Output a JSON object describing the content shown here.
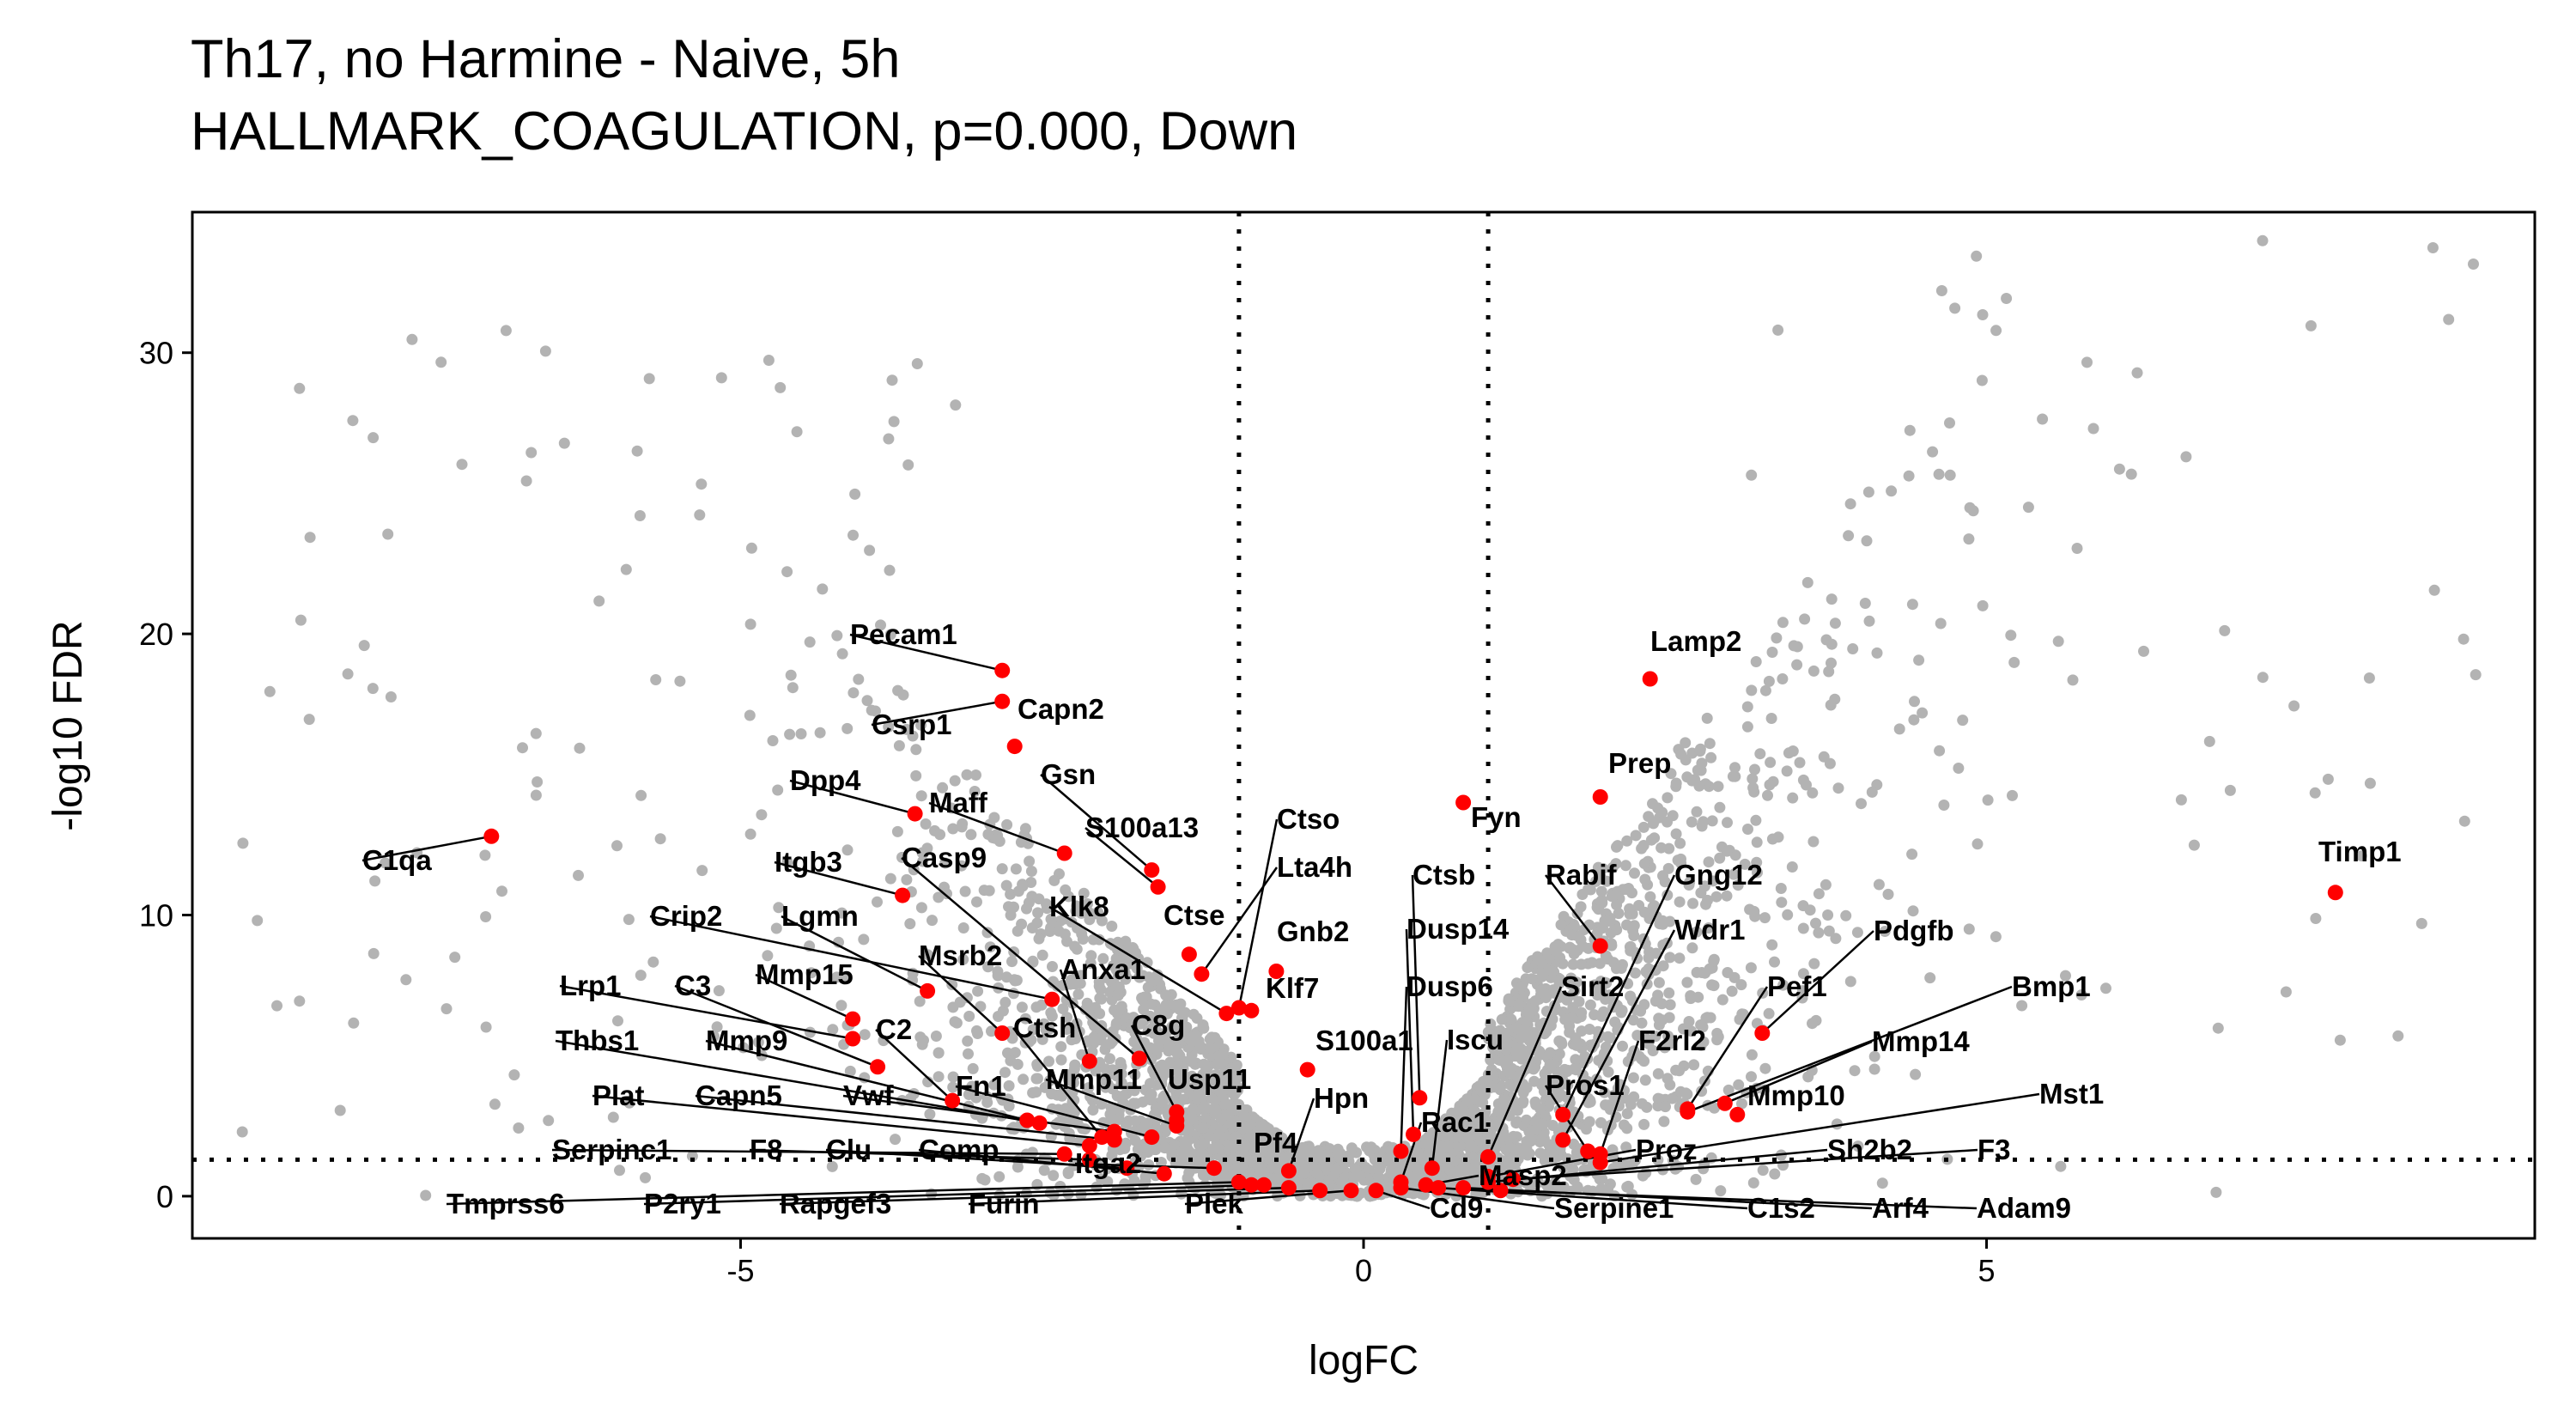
{
  "chart_data": {
    "type": "scatter",
    "title": "Th17, no Harmine - Naive, 5h",
    "subtitle": "HALLMARK_COAGULATION, p=0.000, Down",
    "xlabel": "logFC",
    "ylabel": "-log10 FDR",
    "xlim": [
      -9.4,
      9.4
    ],
    "ylim": [
      -1.5,
      35
    ],
    "x_ticks": [
      -5,
      0,
      5
    ],
    "y_ticks": [
      0,
      10,
      20,
      30
    ],
    "thresholds": {
      "logFC": [
        -1,
        1
      ],
      "neg_log10_fdr": 1.3
    },
    "grid": false,
    "legend": "none",
    "colors": {
      "background_genes": "#b3b3b3",
      "set_genes": "#ff0000",
      "guides": "#000000"
    },
    "highlighted_genes": [
      {
        "name": "C1qa",
        "x": -7.0,
        "y": 12.8
      },
      {
        "name": "Timp1",
        "x": 7.8,
        "y": 10.8
      },
      {
        "name": "Pecam1",
        "x": -2.9,
        "y": 18.7
      },
      {
        "name": "Csrp1",
        "x": -2.9,
        "y": 17.6
      },
      {
        "name": "Capn2",
        "x": -2.8,
        "y": 16.0
      },
      {
        "name": "Dpp4",
        "x": -3.6,
        "y": 13.6
      },
      {
        "name": "Maff",
        "x": -2.4,
        "y": 12.2
      },
      {
        "name": "Gsn",
        "x": -1.7,
        "y": 11.6
      },
      {
        "name": "S100a13",
        "x": -1.65,
        "y": 11.0
      },
      {
        "name": "Itgb3",
        "x": -3.7,
        "y": 10.7
      },
      {
        "name": "Casp9",
        "x": -1.8,
        "y": 4.9
      },
      {
        "name": "Klk8",
        "x": -1.1,
        "y": 6.5
      },
      {
        "name": "Ctse",
        "x": -1.4,
        "y": 8.6
      },
      {
        "name": "Lta4h",
        "x": -1.3,
        "y": 7.9
      },
      {
        "name": "Ctso",
        "x": -1.0,
        "y": 6.7
      },
      {
        "name": "Gnb2",
        "x": -0.7,
        "y": 8.0
      },
      {
        "name": "Klf7",
        "x": -0.9,
        "y": 6.6
      },
      {
        "name": "Crip2",
        "x": -2.5,
        "y": 7.0
      },
      {
        "name": "Lgmn",
        "x": -3.5,
        "y": 7.3
      },
      {
        "name": "Mmp15",
        "x": -4.1,
        "y": 6.3
      },
      {
        "name": "Msrb2",
        "x": -2.9,
        "y": 5.8
      },
      {
        "name": "Anxa1",
        "x": -2.2,
        "y": 4.8
      },
      {
        "name": "Ctsh",
        "x": -2.1,
        "y": 2.1
      },
      {
        "name": "C8g",
        "x": -1.5,
        "y": 3.0
      },
      {
        "name": "Lrp1",
        "x": -4.1,
        "y": 5.6
      },
      {
        "name": "C3",
        "x": -3.9,
        "y": 4.6
      },
      {
        "name": "C2",
        "x": -3.3,
        "y": 3.4
      },
      {
        "name": "Thbs1",
        "x": -2.6,
        "y": 2.6
      },
      {
        "name": "Mmp9",
        "x": -2.7,
        "y": 2.7
      },
      {
        "name": "Mmp11",
        "x": -1.5,
        "y": 2.5
      },
      {
        "name": "Usp11",
        "x": -1.5,
        "y": 2.7
      },
      {
        "name": "S100a1",
        "x": -0.45,
        "y": 4.5
      },
      {
        "name": "Hpn",
        "x": -0.6,
        "y": 0.9
      },
      {
        "name": "Plat",
        "x": -2.2,
        "y": 1.8
      },
      {
        "name": "Capn5",
        "x": -2.0,
        "y": 2.0
      },
      {
        "name": "Vwf",
        "x": -2.0,
        "y": 2.3
      },
      {
        "name": "Fn1",
        "x": -1.7,
        "y": 2.1
      },
      {
        "name": "Pf4",
        "x": -0.9,
        "y": 0.4
      },
      {
        "name": "Serpinc1",
        "x": -2.4,
        "y": 1.5
      },
      {
        "name": "F8",
        "x": -2.2,
        "y": 1.3
      },
      {
        "name": "Clu",
        "x": -1.9,
        "y": 1.0
      },
      {
        "name": "Comp",
        "x": -1.6,
        "y": 0.8
      },
      {
        "name": "Itga2",
        "x": -1.2,
        "y": 1.0
      },
      {
        "name": "Tmprss6",
        "x": -1.0,
        "y": 0.5
      },
      {
        "name": "P2ry1",
        "x": -0.8,
        "y": 0.4
      },
      {
        "name": "Rapgef3",
        "x": -0.6,
        "y": 0.3
      },
      {
        "name": "Furin",
        "x": -0.35,
        "y": 0.2
      },
      {
        "name": "Plek",
        "x": -0.1,
        "y": 0.2
      },
      {
        "name": "Fyn",
        "x": 0.8,
        "y": 14.0
      },
      {
        "name": "Ctsb",
        "x": 0.45,
        "y": 3.5
      },
      {
        "name": "Dusp14",
        "x": 0.4,
        "y": 2.2
      },
      {
        "name": "Dusp6",
        "x": 0.3,
        "y": 1.6
      },
      {
        "name": "Iscu",
        "x": 0.55,
        "y": 1.0
      },
      {
        "name": "Rac1",
        "x": 0.3,
        "y": 0.5
      },
      {
        "name": "Lamp2",
        "x": 2.3,
        "y": 18.4
      },
      {
        "name": "Prep",
        "x": 1.9,
        "y": 14.2
      },
      {
        "name": "Rabif",
        "x": 1.9,
        "y": 8.9
      },
      {
        "name": "Gng12",
        "x": 1.6,
        "y": 2.9
      },
      {
        "name": "Wdr1",
        "x": 1.6,
        "y": 2.0
      },
      {
        "name": "Sirt2",
        "x": 1.0,
        "y": 1.4
      },
      {
        "name": "F2rl2",
        "x": 1.9,
        "y": 1.5
      },
      {
        "name": "Pros1",
        "x": 1.8,
        "y": 1.6
      },
      {
        "name": "Pdgfb",
        "x": 3.2,
        "y": 5.8
      },
      {
        "name": "Pef1",
        "x": 2.6,
        "y": 3.1
      },
      {
        "name": "Bmp1",
        "x": 2.6,
        "y": 3.0
      },
      {
        "name": "Mmp14",
        "x": 2.9,
        "y": 3.3
      },
      {
        "name": "Mmp10",
        "x": 3.0,
        "y": 2.9
      },
      {
        "name": "Mst1",
        "x": 1.9,
        "y": 1.2
      },
      {
        "name": "Proz",
        "x": 1.0,
        "y": 0.7
      },
      {
        "name": "Sh2b2",
        "x": 1.0,
        "y": 0.5
      },
      {
        "name": "F3",
        "x": 1.2,
        "y": 0.6
      },
      {
        "name": "Masp2",
        "x": 0.5,
        "y": 0.4
      },
      {
        "name": "Cd9",
        "x": 0.1,
        "y": 0.2
      },
      {
        "name": "Serpine1",
        "x": 0.3,
        "y": 0.3
      },
      {
        "name": "C1s2",
        "x": 0.6,
        "y": 0.3
      },
      {
        "name": "Arf4",
        "x": 0.8,
        "y": 0.3
      },
      {
        "name": "Adam9",
        "x": 1.1,
        "y": 0.2
      }
    ]
  }
}
